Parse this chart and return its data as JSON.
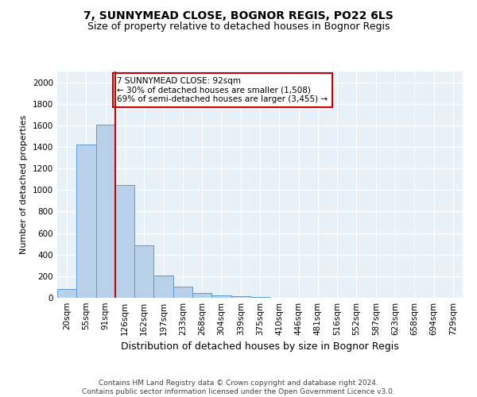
{
  "title": "7, SUNNYMEAD CLOSE, BOGNOR REGIS, PO22 6LS",
  "subtitle": "Size of property relative to detached houses in Bognor Regis",
  "xlabel": "Distribution of detached houses by size in Bognor Regis",
  "ylabel": "Number of detached properties",
  "categories": [
    "20sqm",
    "55sqm",
    "91sqm",
    "126sqm",
    "162sqm",
    "197sqm",
    "233sqm",
    "268sqm",
    "304sqm",
    "339sqm",
    "375sqm",
    "410sqm",
    "446sqm",
    "481sqm",
    "516sqm",
    "552sqm",
    "587sqm",
    "623sqm",
    "658sqm",
    "694sqm",
    "729sqm"
  ],
  "values": [
    80,
    1420,
    1610,
    1050,
    490,
    205,
    105,
    47,
    25,
    15,
    10,
    0,
    0,
    0,
    0,
    0,
    0,
    0,
    0,
    0,
    0
  ],
  "bar_color": "#b8d0ea",
  "bar_edge_color": "#5b9bd5",
  "vline_x": 2,
  "vline_color": "#cc0000",
  "annotation_text": "7 SUNNYMEAD CLOSE: 92sqm\n← 30% of detached houses are smaller (1,508)\n69% of semi-detached houses are larger (3,455) →",
  "annotation_box_color": "#ffffff",
  "annotation_box_edge": "#cc0000",
  "ylim": [
    0,
    2100
  ],
  "yticks": [
    0,
    200,
    400,
    600,
    800,
    1000,
    1200,
    1400,
    1600,
    1800,
    2000
  ],
  "bg_color": "#e8f0f8",
  "grid_color": "#ffffff",
  "footer": "Contains HM Land Registry data © Crown copyright and database right 2024.\nContains public sector information licensed under the Open Government Licence v3.0.",
  "title_fontsize": 10,
  "subtitle_fontsize": 9,
  "xlabel_fontsize": 9,
  "ylabel_fontsize": 8,
  "tick_fontsize": 7.5,
  "annotation_fontsize": 7.5,
  "footer_fontsize": 6.5
}
